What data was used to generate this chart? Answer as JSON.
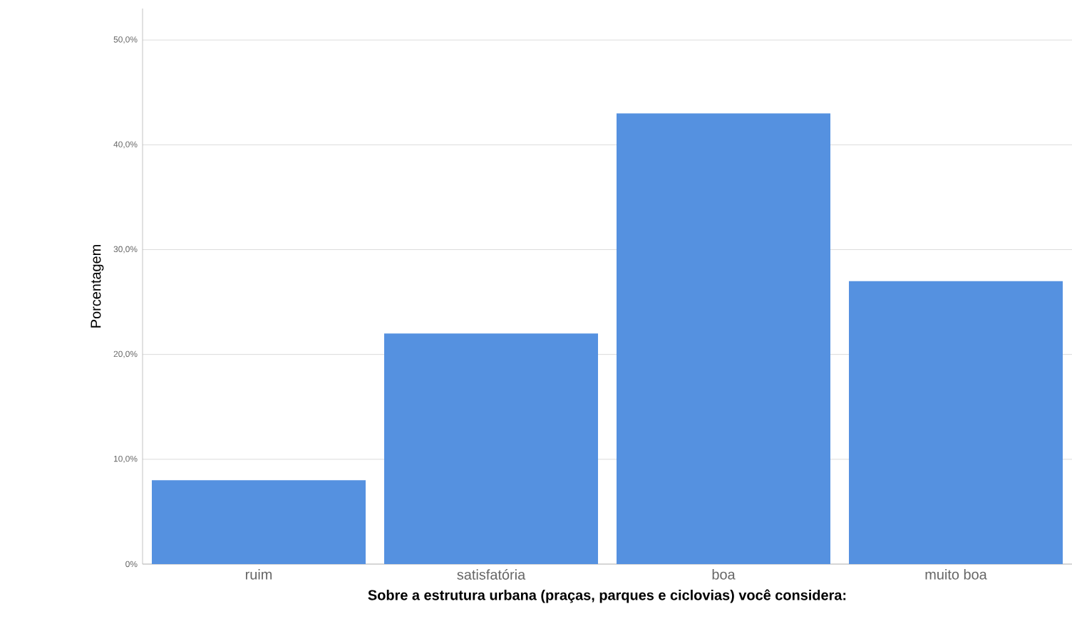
{
  "chart_data": {
    "type": "bar",
    "xlabel": "Sobre a estrutura urbana (praças, parques e ciclovias) você considera:",
    "ylabel": "Porcentagem",
    "categories": [
      "ruim",
      "satisfatória",
      "boa",
      "muito boa"
    ],
    "values": [
      8,
      22,
      43,
      27
    ],
    "color": "#5591e0",
    "ylim": [
      0,
      53
    ],
    "yticks": [
      {
        "value": 0,
        "label": "0%"
      },
      {
        "value": 10,
        "label": "10,0%"
      },
      {
        "value": 20,
        "label": "20,0%"
      },
      {
        "value": 30,
        "label": "30,0%"
      },
      {
        "value": 40,
        "label": "40,0%"
      },
      {
        "value": 50,
        "label": "50,0%"
      }
    ],
    "grid": "y"
  }
}
